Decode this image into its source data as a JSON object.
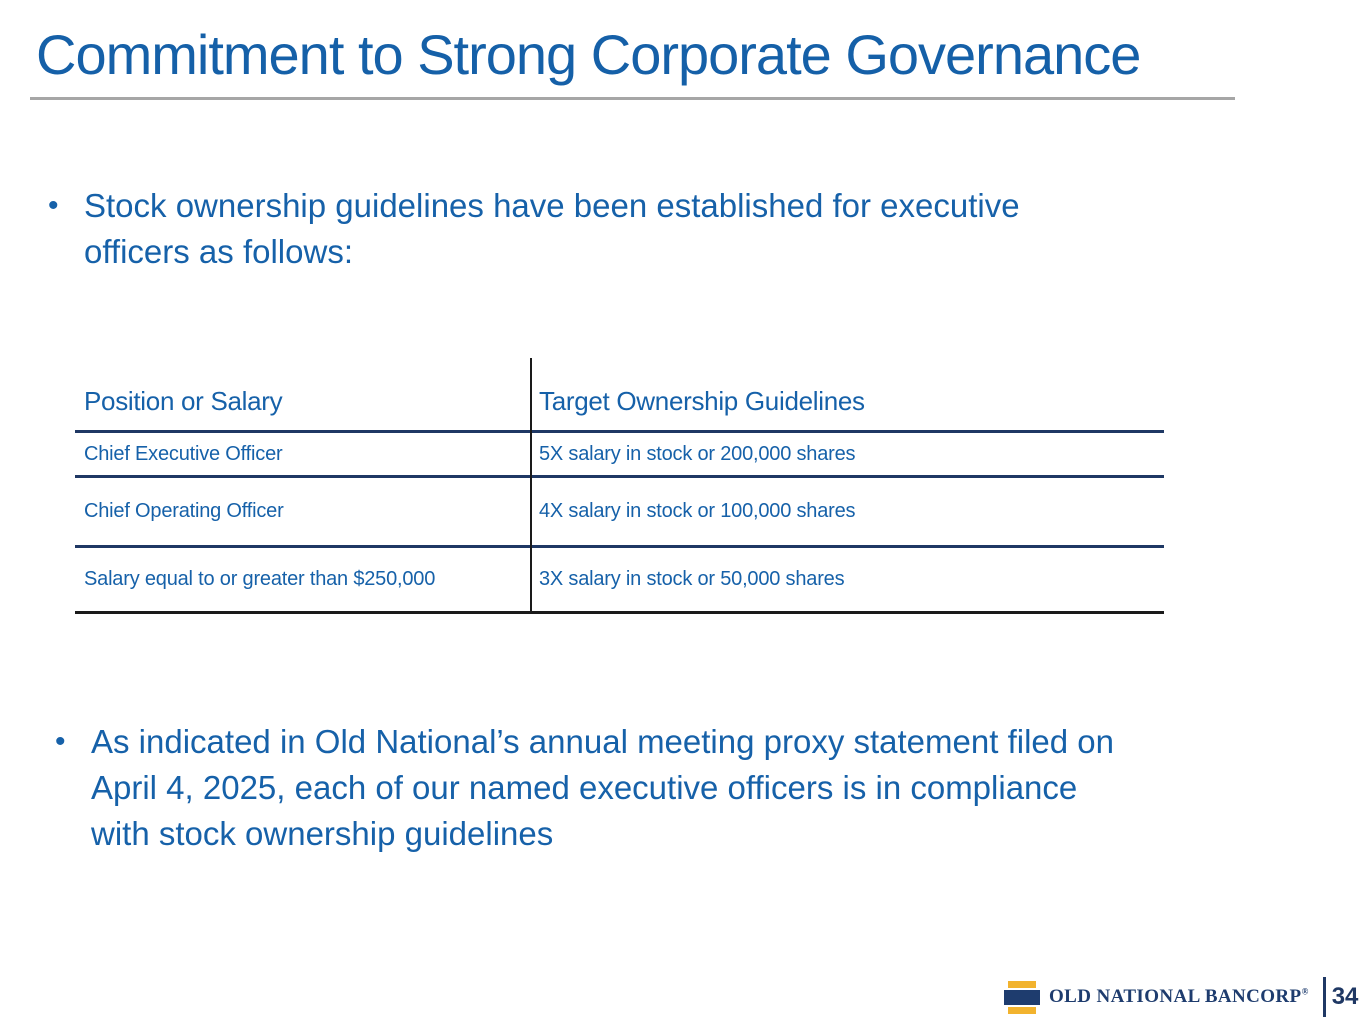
{
  "slide": {
    "title": "Commitment to Strong Corporate Governance"
  },
  "bullets": {
    "first": {
      "marker": "•",
      "lines": [
        "Stock ownership guidelines have been established for executive",
        "officers as follows:"
      ]
    },
    "second": {
      "marker": "•",
      "lines": [
        "As indicated in Old National’s annual meeting proxy statement filed on",
        "April 4, 2025, each of our named executive officers is in compliance",
        "with stock ownership guidelines"
      ]
    }
  },
  "table": {
    "columns": [
      "Position or Salary",
      "Target Ownership Guidelines"
    ],
    "rows": [
      {
        "position": "Chief Executive Officer",
        "guideline": "5X salary in stock or 200,000 shares"
      },
      {
        "position": "Chief Operating Officer",
        "guideline": "4X salary in stock or 100,000 shares"
      },
      {
        "position": "Salary equal to or greater than $250,000",
        "guideline": "3X salary in stock or 50,000 shares"
      }
    ]
  },
  "footer": {
    "logo_text": "OLD NATIONAL BANCORP",
    "registered_mark": "®",
    "page_number": "34"
  },
  "colors": {
    "title_blue": "#1560A8",
    "body_blue": "#1661A9",
    "table_line_navy": "#1F3864",
    "divider_black": "#1A1A1A",
    "rule_gray": "#A6A6A6",
    "logo_navy": "#1E3C6E",
    "logo_gold": "#F2B32E"
  }
}
